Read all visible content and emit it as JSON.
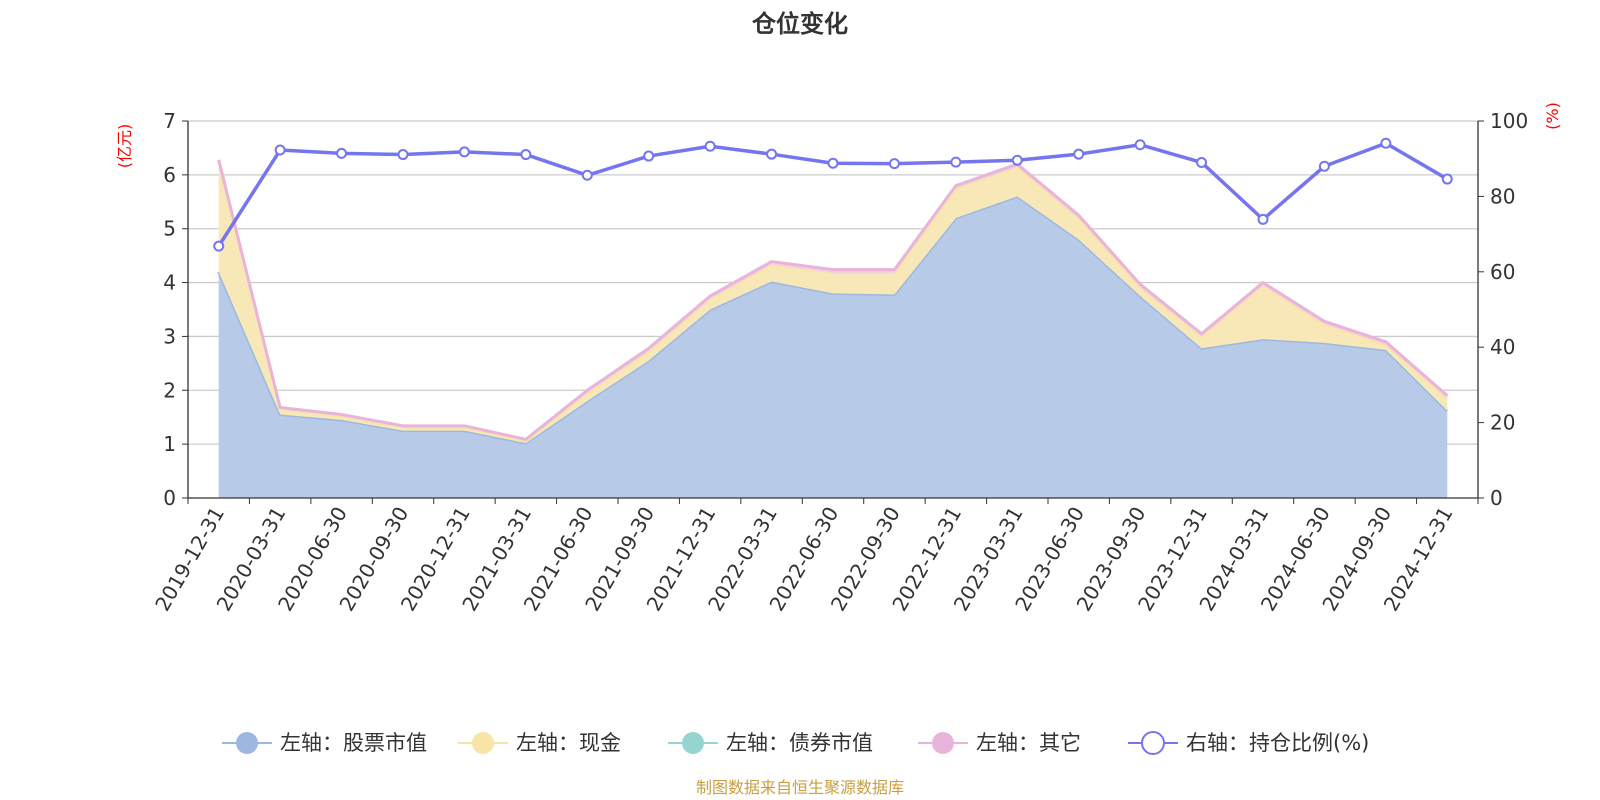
{
  "chart_data": {
    "type": "area",
    "title": "仓位变化",
    "left_axis_unit": "(亿元)",
    "right_axis_unit": "(%)",
    "left_ylim": [
      0,
      7
    ],
    "left_yticks": [
      "0",
      "1",
      "2",
      "3",
      "4",
      "5",
      "6",
      "7"
    ],
    "right_ylim": [
      0,
      100
    ],
    "right_yticks": [
      "0",
      "20",
      "40",
      "60",
      "80",
      "100"
    ],
    "categories": [
      "2019-12-31",
      "2020-03-31",
      "2020-06-30",
      "2020-09-30",
      "2020-12-31",
      "2021-03-31",
      "2021-06-30",
      "2021-09-30",
      "2021-12-31",
      "2022-03-31",
      "2022-06-30",
      "2022-09-30",
      "2022-12-31",
      "2023-03-31",
      "2023-06-30",
      "2023-09-30",
      "2023-12-31",
      "2024-03-31",
      "2024-06-30",
      "2024-09-30",
      "2024-12-31"
    ],
    "stacked_series": [
      {
        "name": "左轴：股票市值",
        "color": "#9db8e0",
        "fill": "#b7cbe9",
        "values": [
          4.2,
          1.55,
          1.45,
          1.25,
          1.25,
          1.02,
          1.8,
          2.55,
          3.5,
          4.02,
          3.8,
          3.78,
          5.2,
          5.6,
          4.8,
          3.75,
          2.78,
          2.95,
          2.88,
          2.75,
          1.62
        ]
      },
      {
        "name": "左轴：现金",
        "color": "#f8e4a6",
        "fill": "#f8e8b8",
        "values": [
          2.05,
          0.1,
          0.07,
          0.06,
          0.06,
          0.04,
          0.15,
          0.18,
          0.2,
          0.32,
          0.38,
          0.4,
          0.55,
          0.55,
          0.4,
          0.17,
          0.22,
          1.0,
          0.35,
          0.1,
          0.23
        ]
      },
      {
        "name": "左轴：债券市值",
        "color": "#96d4d0",
        "fill": "#b0e0dc",
        "values": [
          0,
          0,
          0,
          0,
          0,
          0,
          0,
          0,
          0,
          0,
          0,
          0,
          0,
          0,
          0,
          0,
          0,
          0,
          0,
          0,
          0
        ]
      },
      {
        "name": "左轴：其它",
        "color": "#e8b4da",
        "fill": "#f0cfe6",
        "values": [
          0.03,
          0.03,
          0.03,
          0.03,
          0.03,
          0.03,
          0.05,
          0.05,
          0.05,
          0.05,
          0.06,
          0.06,
          0.05,
          0.05,
          0.05,
          0.05,
          0.05,
          0.05,
          0.05,
          0.05,
          0.05
        ]
      }
    ],
    "line_series": {
      "name": "右轴：持仓比例(%)",
      "color": "#7575ef",
      "values": [
        66.8,
        92.3,
        91.4,
        91.1,
        91.8,
        91.1,
        85.6,
        90.7,
        93.3,
        91.2,
        88.8,
        88.7,
        89.1,
        89.6,
        91.2,
        93.7,
        89.0,
        73.9,
        88.0,
        94.1,
        84.6
      ]
    },
    "legend_position": "bottom",
    "grid": true
  },
  "source_note": "制图数据来自恒生聚源数据库"
}
